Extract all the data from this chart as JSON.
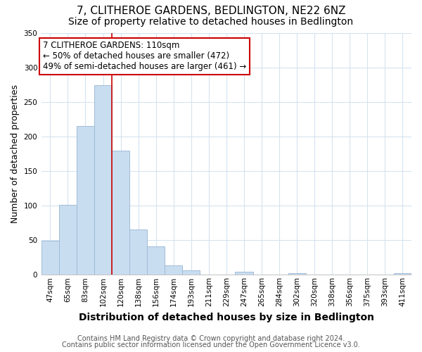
{
  "title": "7, CLITHEROE GARDENS, BEDLINGTON, NE22 6NZ",
  "subtitle": "Size of property relative to detached houses in Bedlington",
  "xlabel": "Distribution of detached houses by size in Bedlington",
  "ylabel": "Number of detached properties",
  "bar_labels": [
    "47sqm",
    "65sqm",
    "83sqm",
    "102sqm",
    "120sqm",
    "138sqm",
    "156sqm",
    "174sqm",
    "193sqm",
    "211sqm",
    "229sqm",
    "247sqm",
    "265sqm",
    "284sqm",
    "302sqm",
    "320sqm",
    "338sqm",
    "356sqm",
    "375sqm",
    "393sqm",
    "411sqm"
  ],
  "bar_values": [
    49,
    101,
    215,
    274,
    179,
    65,
    41,
    14,
    6,
    0,
    0,
    4,
    0,
    0,
    2,
    0,
    0,
    0,
    0,
    0,
    2
  ],
  "bar_color": "#c9ddf0",
  "bar_edge_color": "#a0bcd8",
  "vline_color": "#cc0000",
  "vline_x": 3.5,
  "annotation_line1": "7 CLITHEROE GARDENS: 110sqm",
  "annotation_line2": "← 50% of detached houses are smaller (472)",
  "annotation_line3": "49% of semi-detached houses are larger (461) →",
  "annotation_box_facecolor": "#ffffff",
  "annotation_box_edgecolor": "#cc0000",
  "ylim": [
    0,
    350
  ],
  "yticks": [
    0,
    50,
    100,
    150,
    200,
    250,
    300,
    350
  ],
  "grid_color": "#d5e3f0",
  "title_fontsize": 11,
  "subtitle_fontsize": 10,
  "xlabel_fontsize": 10,
  "ylabel_fontsize": 9,
  "tick_fontsize": 7.5,
  "annotation_fontsize": 8.5,
  "footer_fontsize": 7,
  "footer_line1": "Contains HM Land Registry data © Crown copyright and database right 2024.",
  "footer_line2": "Contains public sector information licensed under the Open Government Licence v3.0."
}
